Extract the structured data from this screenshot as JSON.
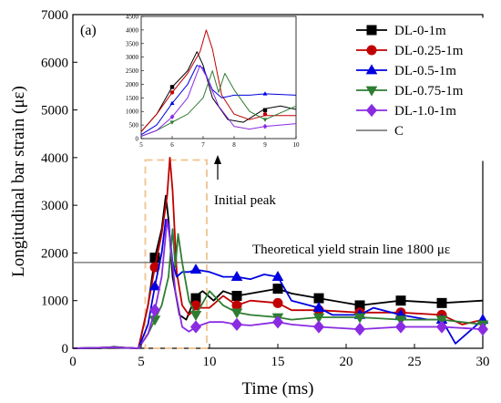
{
  "chart_data": {
    "type": "line",
    "panel_label": "(a)",
    "xlabel": "Time (ms)",
    "ylabel": "Longitudinal bar strain (με)",
    "xlim": [
      0,
      30
    ],
    "ylim": [
      0,
      7000
    ],
    "x_ticks": [
      0,
      5,
      10,
      15,
      20,
      25,
      30
    ],
    "y_ticks": [
      0,
      1000,
      2000,
      3000,
      4000,
      5000,
      6000,
      7000
    ],
    "legend_position": "top-right",
    "series": [
      {
        "name": "DL-0-1m",
        "color": "#000000",
        "marker": "square",
        "x": [
          0,
          2,
          3,
          4,
          4.8,
          5.5,
          6,
          6.5,
          6.8,
          7.0,
          7.3,
          7.8,
          8.3,
          9,
          9.5,
          10.3,
          11,
          12,
          13,
          14,
          15,
          16,
          18,
          21,
          24,
          27,
          30
        ],
        "y": [
          0,
          0,
          30,
          10,
          0,
          900,
          1900,
          2500,
          3200,
          2700,
          1500,
          700,
          600,
          1100,
          1200,
          1000,
          1200,
          1100,
          1150,
          1200,
          1250,
          1150,
          1050,
          900,
          1000,
          950,
          1000
        ],
        "markers_x": [
          6,
          9,
          12,
          15,
          18,
          21,
          24,
          27
        ],
        "markers_y": [
          1900,
          1050,
          1100,
          1250,
          1050,
          900,
          1000,
          950
        ]
      },
      {
        "name": "DL-0.25-1m",
        "color": "#c00000",
        "marker": "circle",
        "x": [
          0,
          3,
          4.8,
          5.5,
          6,
          6.5,
          6.9,
          7.1,
          7.3,
          7.6,
          8,
          8.5,
          9,
          10,
          11,
          12,
          13,
          15,
          16,
          18,
          21,
          24,
          27,
          28.5,
          30
        ],
        "y": [
          0,
          20,
          0,
          900,
          1700,
          2400,
          3200,
          4000,
          3300,
          1600,
          900,
          700,
          850,
          850,
          1100,
          900,
          1000,
          950,
          800,
          800,
          750,
          750,
          700,
          500,
          600
        ],
        "markers_x": [
          6,
          9,
          12,
          15,
          18,
          21,
          24,
          27
        ],
        "markers_y": [
          1700,
          900,
          900,
          950,
          800,
          750,
          750,
          700
        ]
      },
      {
        "name": "DL-0.5-1m",
        "color": "#0000e0",
        "marker": "triangle-up",
        "x": [
          0,
          3,
          4.8,
          5.5,
          6,
          6.5,
          6.8,
          7.0,
          7.3,
          7.6,
          8,
          8.5,
          9,
          10,
          11,
          12,
          13,
          14,
          15,
          16,
          18,
          19,
          21,
          22,
          24,
          26,
          27,
          28,
          30
        ],
        "y": [
          0,
          20,
          0,
          500,
          1300,
          2000,
          2700,
          2600,
          1800,
          1500,
          1600,
          1600,
          1650,
          1600,
          1500,
          1500,
          1450,
          1550,
          1500,
          1000,
          850,
          700,
          700,
          850,
          700,
          600,
          600,
          100,
          600
        ],
        "markers_x": [
          6,
          9,
          12,
          15,
          18,
          21,
          24,
          27,
          30
        ],
        "markers_y": [
          1300,
          1650,
          1500,
          1500,
          850,
          700,
          700,
          600,
          600
        ]
      },
      {
        "name": "DL-0.75-1m",
        "color": "#2e7d32",
        "marker": "triangle-down",
        "x": [
          0,
          3,
          4.8,
          5.5,
          6,
          6.5,
          7,
          7.3,
          7.5,
          7.7,
          8,
          8.5,
          9,
          10,
          11,
          12,
          13,
          15,
          16,
          18,
          21,
          24,
          27,
          30
        ],
        "y": [
          0,
          20,
          0,
          300,
          600,
          900,
          1500,
          2500,
          1700,
          2400,
          1800,
          1000,
          700,
          1200,
          900,
          750,
          700,
          650,
          600,
          650,
          650,
          600,
          600,
          500
        ],
        "markers_x": [
          6,
          9,
          12,
          15,
          18,
          21,
          24,
          27,
          30
        ],
        "markers_y": [
          600,
          700,
          750,
          650,
          650,
          650,
          600,
          600,
          500
        ]
      },
      {
        "name": "DL-1.0-1m",
        "color": "#8a2be2",
        "marker": "diamond",
        "x": [
          0,
          3,
          4.8,
          5.5,
          6,
          6.5,
          6.9,
          7.1,
          7.5,
          8,
          8.5,
          9,
          10,
          11,
          12,
          13,
          15,
          16,
          18,
          21,
          24,
          27,
          30
        ],
        "y": [
          0,
          20,
          0,
          300,
          800,
          1500,
          2700,
          2300,
          1200,
          450,
          350,
          450,
          550,
          550,
          500,
          480,
          550,
          500,
          450,
          400,
          450,
          450,
          400
        ],
        "markers_x": [
          6,
          9,
          12,
          15,
          18,
          21,
          24,
          27,
          30
        ],
        "markers_y": [
          800,
          450,
          500,
          550,
          450,
          400,
          450,
          450,
          400
        ]
      }
    ],
    "reference_line": {
      "name": "C",
      "y": 1800,
      "color": "#808080",
      "label": "Theoretical yield strain line 1800 με"
    },
    "annotation": {
      "text": "Initial peak",
      "box_x": [
        5.3,
        9.8
      ],
      "box_y": [
        0,
        3950
      ],
      "box_color": "#f0c89a"
    },
    "inset": {
      "xlim": [
        5,
        10
      ],
      "ylim": [
        0,
        4500
      ],
      "x_ticks": [
        5,
        6,
        7,
        8,
        9,
        10
      ],
      "y_ticks": [
        0,
        500,
        1000,
        1500,
        2000,
        2500,
        3000,
        3500,
        4000,
        4500
      ]
    }
  }
}
